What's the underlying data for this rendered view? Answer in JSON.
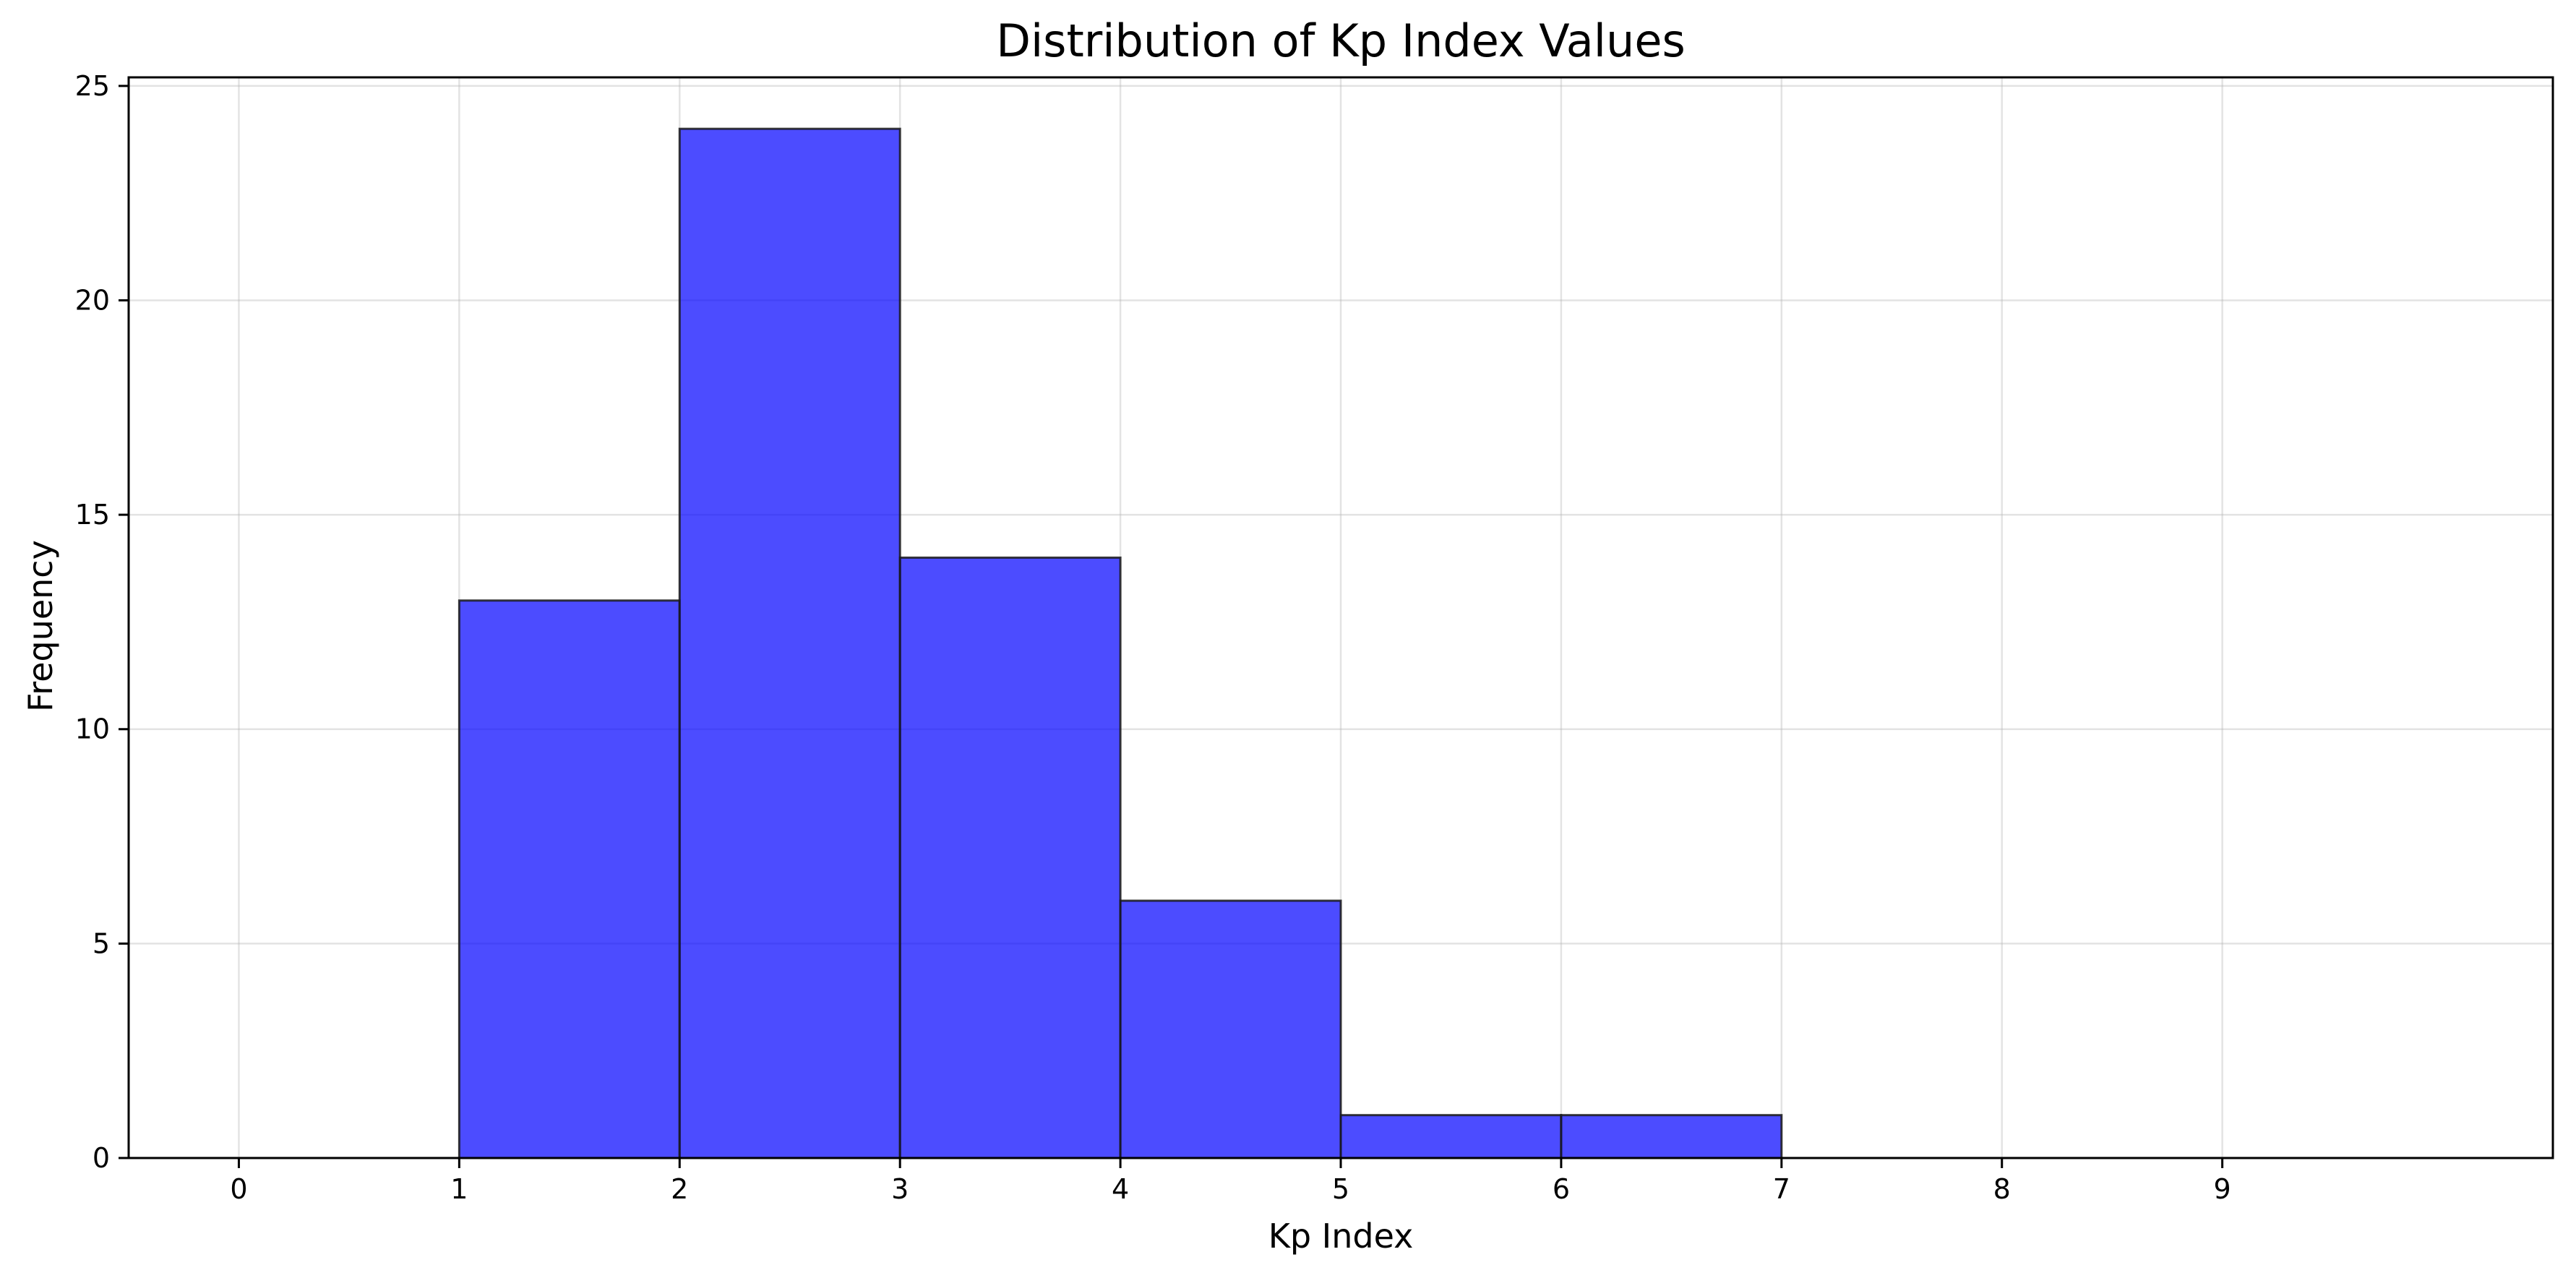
{
  "chart_data": {
    "type": "bar",
    "title": "Distribution of Kp Index Values",
    "xlabel": "Kp Index",
    "ylabel": "Frequency",
    "bins": [
      {
        "start": 0,
        "end": 1,
        "value": 0
      },
      {
        "start": 1,
        "end": 2,
        "value": 13
      },
      {
        "start": 2,
        "end": 3,
        "value": 24
      },
      {
        "start": 3,
        "end": 4,
        "value": 14
      },
      {
        "start": 4,
        "end": 5,
        "value": 6
      },
      {
        "start": 5,
        "end": 6,
        "value": 1
      },
      {
        "start": 6,
        "end": 7,
        "value": 1
      },
      {
        "start": 7,
        "end": 8,
        "value": 0
      },
      {
        "start": 8,
        "end": 9,
        "value": 0
      },
      {
        "start": 9,
        "end": 10,
        "value": 0
      }
    ],
    "xticks": [
      0,
      1,
      2,
      3,
      4,
      5,
      6,
      7,
      8,
      9
    ],
    "yticks": [
      0,
      5,
      10,
      15,
      20,
      25
    ],
    "xlim": [
      -0.5,
      10.5
    ],
    "ylim": [
      0,
      25.2
    ],
    "grid": true,
    "bar_color": "#0000ff",
    "bar_edge_color": "#1a1a1a"
  }
}
